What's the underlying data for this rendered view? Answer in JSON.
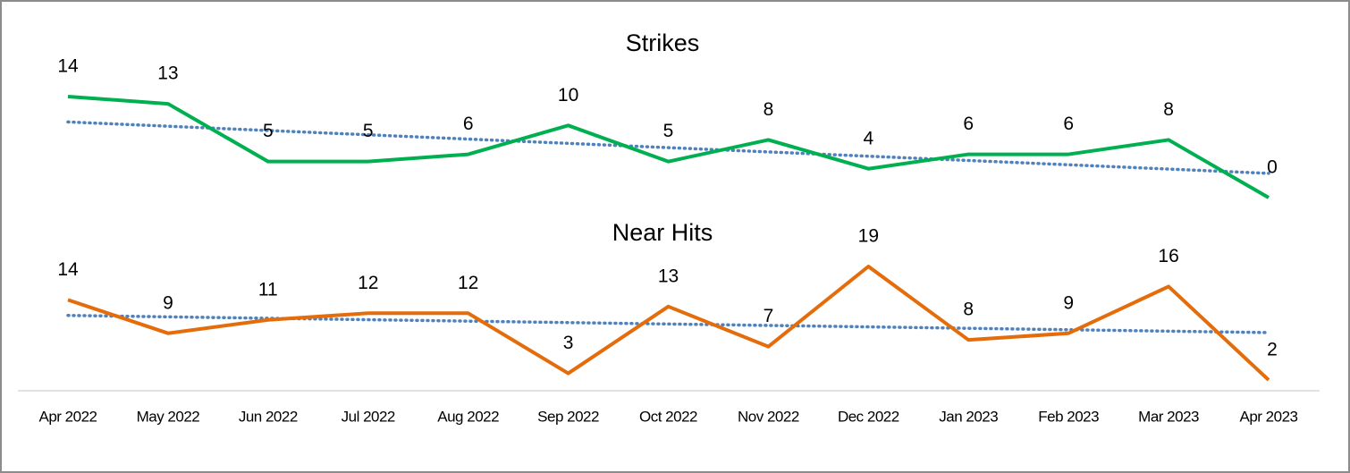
{
  "chart_data": {
    "type": "line",
    "categories": [
      "Apr 2022",
      "May 2022",
      "Jun 2022",
      "Jul 2022",
      "Aug 2022",
      "Sep 2022",
      "Oct 2022",
      "Nov 2022",
      "Dec 2022",
      "Jan 2023",
      "Feb 2023",
      "Mar 2023",
      "Apr 2023"
    ],
    "series": [
      {
        "name": "Strikes",
        "color": "#00b050",
        "values": [
          14,
          13,
          5,
          5,
          6,
          10,
          5,
          8,
          4,
          6,
          6,
          8,
          0
        ]
      },
      {
        "name": "Near Hits",
        "color": "#e46c0a",
        "values": [
          14,
          9,
          11,
          12,
          12,
          3,
          13,
          7,
          19,
          8,
          9,
          16,
          2
        ]
      }
    ],
    "trendline": true,
    "trendline_color": "#4f81bd"
  }
}
